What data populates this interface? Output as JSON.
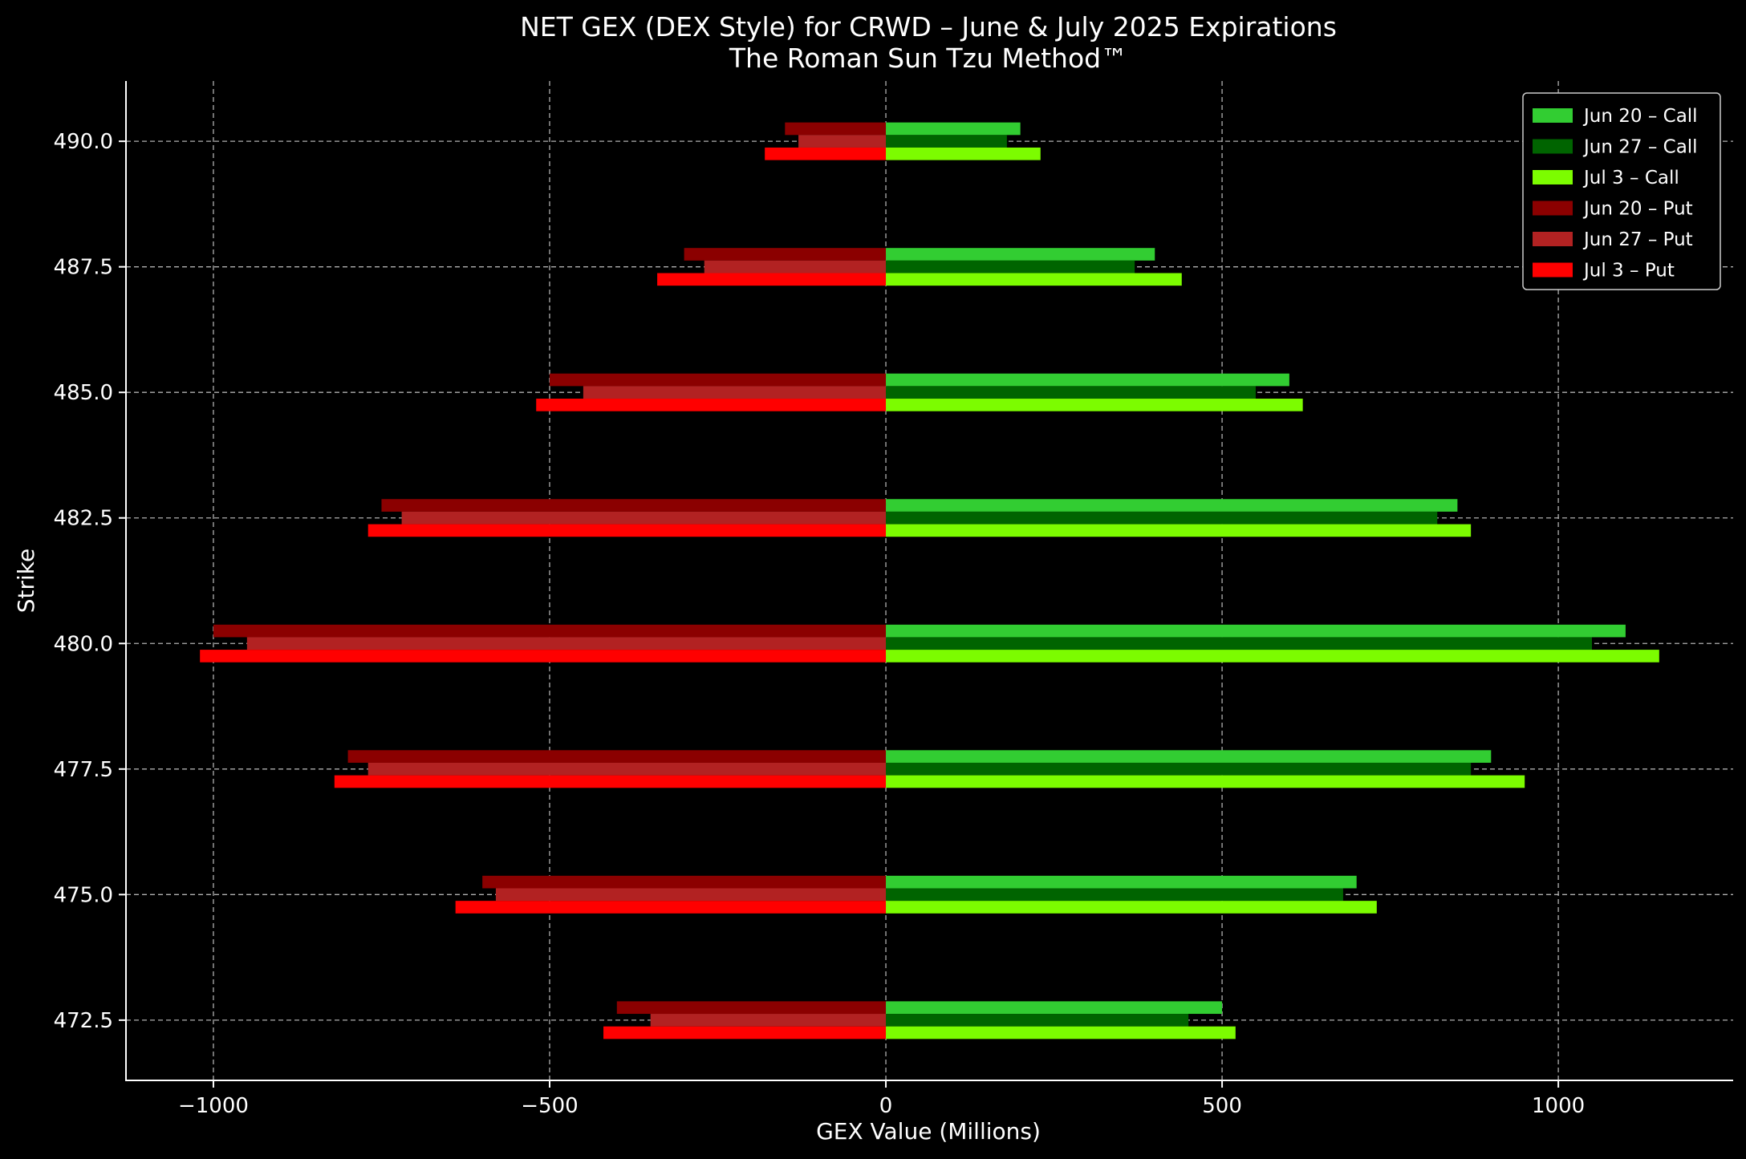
{
  "chart_data": {
    "type": "bar",
    "orientation": "horizontal",
    "title": "NET GEX (DEX Style) for CRWD – June & July 2025 Expirations",
    "subtitle": "The Roman Sun Tzu Method™",
    "xlabel": "GEX Value (Millions)",
    "ylabel": "Strike",
    "xlim": [
      -1130,
      1260
    ],
    "ylim": [
      471.3,
      491.2
    ],
    "xticks": [
      -1000,
      -500,
      0,
      500,
      1000
    ],
    "xtick_labels": [
      "−1000",
      "−500",
      "0",
      "500",
      "1000"
    ],
    "categories": [
      472.5,
      475.0,
      477.5,
      480.0,
      482.5,
      485.0,
      487.5,
      490.0
    ],
    "category_labels": [
      "472.5",
      "475.0",
      "477.5",
      "480.0",
      "482.5",
      "485.0",
      "487.5",
      "490.0"
    ],
    "grid": true,
    "legend_position": "top-right",
    "series": [
      {
        "name": "Jun 20 – Call",
        "color": "#32cd32",
        "slot": -1,
        "values": [
          500,
          700,
          900,
          1100,
          850,
          600,
          400,
          200
        ]
      },
      {
        "name": "Jun 27 – Call",
        "color": "#006400",
        "slot": 0,
        "values": [
          450,
          680,
          870,
          1050,
          820,
          550,
          370,
          180
        ]
      },
      {
        "name": "Jul 3 – Call",
        "color": "#7cfc00",
        "slot": 1,
        "values": [
          520,
          730,
          950,
          1150,
          870,
          620,
          440,
          230
        ]
      },
      {
        "name": "Jun 20 – Put",
        "color": "#8b0000",
        "slot": -1,
        "values": [
          -400,
          -600,
          -800,
          -1000,
          -750,
          -500,
          -300,
          -150
        ]
      },
      {
        "name": "Jun 27 – Put",
        "color": "#b22222",
        "slot": 0,
        "values": [
          -350,
          -580,
          -770,
          -950,
          -720,
          -450,
          -270,
          -130
        ]
      },
      {
        "name": "Jul 3 – Put",
        "color": "#ff0000",
        "slot": 1,
        "values": [
          -420,
          -640,
          -820,
          -1020,
          -770,
          -520,
          -340,
          -180
        ]
      }
    ]
  }
}
